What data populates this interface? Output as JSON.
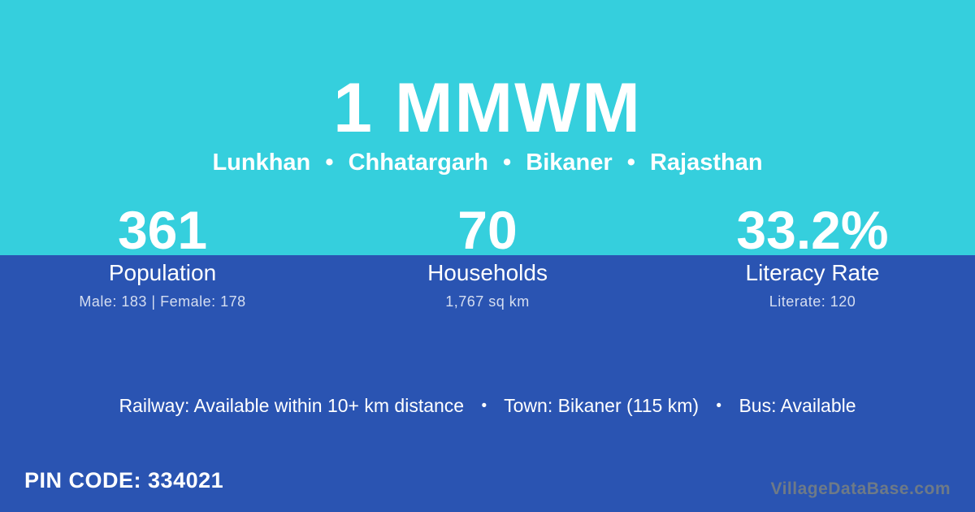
{
  "colors": {
    "teal_bg": "#35cfdd",
    "blue_bg": "#2a54b2",
    "text_primary": "#ffffff",
    "text_muted": "rgba(255,255,255,0.8)",
    "watermark": "#6e7a87"
  },
  "header": {
    "title": "1 MMWM",
    "separator": "•",
    "location_parts": [
      "Lunkhan",
      "Chhatargarh",
      "Bikaner",
      "Rajasthan"
    ]
  },
  "stats": [
    {
      "value": "361",
      "label": "Population",
      "detail": "Male: 183 | Female: 178"
    },
    {
      "value": "70",
      "label": "Households",
      "detail": "1,767 sq km"
    },
    {
      "value": "33.2%",
      "label": "Literacy Rate",
      "detail": "Literate: 120"
    }
  ],
  "facilities": {
    "railway": "Railway: Available within 10+ km distance",
    "town": "Town: Bikaner (115 km)",
    "bus": "Bus: Available",
    "separator": "•"
  },
  "footer": {
    "pin_label": "PIN CODE:",
    "pin_value": "334021",
    "watermark": "VillageDataBase.com"
  }
}
